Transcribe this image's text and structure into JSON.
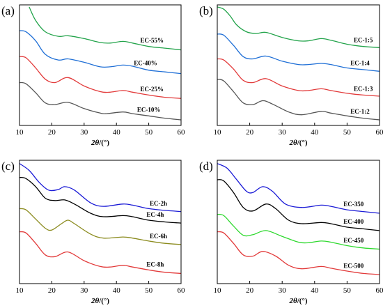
{
  "chart_data": [
    {
      "type": "line",
      "panel_label": "(a)",
      "xlabel_var": "2θ",
      "xlabel_unit": "/(°)",
      "xlim": [
        10,
        60
      ],
      "xticks": [
        "10",
        "20",
        "30",
        "40",
        "50",
        "60"
      ],
      "y_axis_labels": "none",
      "series": [
        {
          "name": "EC-55%",
          "color": "#22a34a",
          "points": [
            [
              13,
              1.0
            ],
            [
              15,
              0.88
            ],
            [
              18,
              0.78
            ],
            [
              22,
              0.74
            ],
            [
              25,
              0.745
            ],
            [
              30,
              0.72
            ],
            [
              35,
              0.685
            ],
            [
              38,
              0.68
            ],
            [
              42,
              0.695
            ],
            [
              45,
              0.68
            ],
            [
              50,
              0.65
            ],
            [
              55,
              0.635
            ],
            [
              60,
              0.62
            ]
          ]
        },
        {
          "name": "EC-40%",
          "color": "#1f6fd6",
          "points": [
            [
              10,
              0.79
            ],
            [
              12,
              0.78
            ],
            [
              15,
              0.7
            ],
            [
              18,
              0.58
            ],
            [
              22,
              0.53
            ],
            [
              25,
              0.54
            ],
            [
              30,
              0.51
            ],
            [
              35,
              0.47
            ],
            [
              38,
              0.47
            ],
            [
              42,
              0.485
            ],
            [
              45,
              0.475
            ],
            [
              50,
              0.44
            ],
            [
              55,
              0.425
            ],
            [
              60,
              0.41
            ]
          ]
        },
        {
          "name": "EC-25%",
          "color": "#e23a3a",
          "points": [
            [
              10,
              0.56
            ],
            [
              12,
              0.55
            ],
            [
              15,
              0.46
            ],
            [
              18,
              0.36
            ],
            [
              21,
              0.33
            ],
            [
              25,
              0.375
            ],
            [
              30,
              0.3
            ],
            [
              35,
              0.25
            ],
            [
              38,
              0.245
            ],
            [
              42,
              0.26
            ],
            [
              45,
              0.245
            ],
            [
              50,
              0.22
            ],
            [
              55,
              0.2
            ],
            [
              60,
              0.19
            ]
          ]
        },
        {
          "name": "EC-10%",
          "color": "#555555",
          "points": [
            [
              10,
              0.33
            ],
            [
              12,
              0.32
            ],
            [
              15,
              0.24
            ],
            [
              18,
              0.15
            ],
            [
              21,
              0.135
            ],
            [
              25,
              0.155
            ],
            [
              30,
              0.1
            ],
            [
              35,
              0.06
            ],
            [
              37,
              0.055
            ],
            [
              42,
              0.07
            ],
            [
              45,
              0.055
            ],
            [
              50,
              0.035
            ],
            [
              55,
              0.015
            ],
            [
              60,
              0.0
            ]
          ]
        }
      ]
    },
    {
      "type": "line",
      "panel_label": "(b)",
      "xlabel_var": "2θ",
      "xlabel_unit": "/(°)",
      "xlim": [
        10,
        60
      ],
      "xticks": [
        "10",
        "20",
        "30",
        "40",
        "50",
        "60"
      ],
      "y_axis_labels": "none",
      "series": [
        {
          "name": "EC-1:5",
          "color": "#22a34a",
          "points": [
            [
              10,
              1.0
            ],
            [
              12,
              0.98
            ],
            [
              14,
              0.92
            ],
            [
              16,
              0.84
            ],
            [
              19,
              0.78
            ],
            [
              22,
              0.765
            ],
            [
              25,
              0.775
            ],
            [
              30,
              0.73
            ],
            [
              35,
              0.7
            ],
            [
              38,
              0.7
            ],
            [
              42,
              0.72
            ],
            [
              45,
              0.705
            ],
            [
              50,
              0.67
            ],
            [
              55,
              0.65
            ],
            [
              60,
              0.64
            ]
          ]
        },
        {
          "name": "EC-1:4",
          "color": "#1f6fd6",
          "points": [
            [
              10,
              0.76
            ],
            [
              12,
              0.75
            ],
            [
              15,
              0.66
            ],
            [
              18,
              0.56
            ],
            [
              21,
              0.54
            ],
            [
              25,
              0.565
            ],
            [
              30,
              0.52
            ],
            [
              35,
              0.49
            ],
            [
              38,
              0.49
            ],
            [
              42,
              0.5
            ],
            [
              45,
              0.49
            ],
            [
              50,
              0.46
            ],
            [
              55,
              0.445
            ],
            [
              60,
              0.43
            ]
          ]
        },
        {
          "name": "EC-1:3",
          "color": "#e23a3a",
          "points": [
            [
              10,
              0.54
            ],
            [
              12,
              0.53
            ],
            [
              15,
              0.45
            ],
            [
              18,
              0.35
            ],
            [
              21,
              0.33
            ],
            [
              25,
              0.365
            ],
            [
              30,
              0.3
            ],
            [
              35,
              0.26
            ],
            [
              38,
              0.26
            ],
            [
              42,
              0.275
            ],
            [
              45,
              0.26
            ],
            [
              50,
              0.235
            ],
            [
              55,
              0.22
            ],
            [
              60,
              0.21
            ]
          ]
        },
        {
          "name": "EC-1:2",
          "color": "#555555",
          "points": [
            [
              10,
              0.36
            ],
            [
              12,
              0.345
            ],
            [
              15,
              0.25
            ],
            [
              18,
              0.15
            ],
            [
              21,
              0.135
            ],
            [
              24,
              0.17
            ],
            [
              27,
              0.14
            ],
            [
              32,
              0.07
            ],
            [
              36,
              0.045
            ],
            [
              42,
              0.075
            ],
            [
              45,
              0.06
            ],
            [
              50,
              0.035
            ],
            [
              55,
              0.015
            ],
            [
              60,
              0.0
            ]
          ]
        }
      ]
    },
    {
      "type": "line",
      "panel_label": "(c)",
      "xlabel_var": "2θ",
      "xlabel_unit": "/(°)",
      "xlim": [
        10,
        60
      ],
      "xticks": [
        "10",
        "20",
        "30",
        "40",
        "50",
        "60"
      ],
      "y_axis_labels": "none",
      "series": [
        {
          "name": "EC-2h",
          "color": "#1a1ad6",
          "points": [
            [
              10,
              0.99
            ],
            [
              13,
              0.93
            ],
            [
              16,
              0.83
            ],
            [
              19,
              0.76
            ],
            [
              22,
              0.765
            ],
            [
              24,
              0.79
            ],
            [
              27,
              0.76
            ],
            [
              32,
              0.65
            ],
            [
              36,
              0.62
            ],
            [
              42,
              0.64
            ],
            [
              45,
              0.63
            ],
            [
              50,
              0.6
            ],
            [
              55,
              0.585
            ],
            [
              60,
              0.575
            ]
          ]
        },
        {
          "name": "EC-4h",
          "color": "#000000",
          "points": [
            [
              10,
              0.87
            ],
            [
              12,
              0.86
            ],
            [
              15,
              0.79
            ],
            [
              18,
              0.69
            ],
            [
              21,
              0.67
            ],
            [
              24,
              0.675
            ],
            [
              27,
              0.64
            ],
            [
              32,
              0.56
            ],
            [
              36,
              0.53
            ],
            [
              42,
              0.54
            ],
            [
              45,
              0.53
            ],
            [
              50,
              0.5
            ],
            [
              55,
              0.485
            ],
            [
              60,
              0.475
            ]
          ]
        },
        {
          "name": "EC-6h",
          "color": "#8b8b1e",
          "points": [
            [
              10,
              0.6
            ],
            [
              12,
              0.59
            ],
            [
              15,
              0.51
            ],
            [
              18,
              0.43
            ],
            [
              20,
              0.415
            ],
            [
              23,
              0.47
            ],
            [
              25,
              0.5
            ],
            [
              27,
              0.47
            ],
            [
              32,
              0.38
            ],
            [
              36,
              0.345
            ],
            [
              42,
              0.355
            ],
            [
              45,
              0.345
            ],
            [
              50,
              0.32
            ],
            [
              55,
              0.3
            ],
            [
              60,
              0.29
            ]
          ]
        },
        {
          "name": "EC-8h",
          "color": "#e23a3a",
          "points": [
            [
              10,
              0.4
            ],
            [
              12,
              0.39
            ],
            [
              15,
              0.3
            ],
            [
              18,
              0.2
            ],
            [
              21,
              0.185
            ],
            [
              25,
              0.225
            ],
            [
              30,
              0.15
            ],
            [
              35,
              0.1
            ],
            [
              38,
              0.095
            ],
            [
              42,
              0.11
            ],
            [
              45,
              0.095
            ],
            [
              50,
              0.07
            ],
            [
              55,
              0.05
            ],
            [
              60,
              0.04
            ]
          ]
        }
      ]
    },
    {
      "type": "line",
      "panel_label": "(d)",
      "xlabel_var": "2θ",
      "xlabel_unit": "/(°)",
      "xlim": [
        10,
        60
      ],
      "xticks": [
        "10",
        "20",
        "30",
        "40",
        "50",
        "60"
      ],
      "y_axis_labels": "none",
      "series": [
        {
          "name": "EC-350",
          "color": "#1a1ad6",
          "points": [
            [
              10,
              0.99
            ],
            [
              13,
              0.95
            ],
            [
              16,
              0.85
            ],
            [
              19,
              0.75
            ],
            [
              21,
              0.74
            ],
            [
              24,
              0.79
            ],
            [
              27,
              0.75
            ],
            [
              31,
              0.64
            ],
            [
              36,
              0.61
            ],
            [
              42,
              0.63
            ],
            [
              45,
              0.62
            ],
            [
              50,
              0.59
            ],
            [
              55,
              0.575
            ],
            [
              60,
              0.56
            ]
          ]
        },
        {
          "name": "EC-400",
          "color": "#000000",
          "points": [
            [
              10,
              0.85
            ],
            [
              12,
              0.84
            ],
            [
              15,
              0.74
            ],
            [
              18,
              0.61
            ],
            [
              21,
              0.58
            ],
            [
              25,
              0.64
            ],
            [
              28,
              0.6
            ],
            [
              32,
              0.5
            ],
            [
              36,
              0.47
            ],
            [
              42,
              0.48
            ],
            [
              45,
              0.47
            ],
            [
              50,
              0.44
            ],
            [
              55,
              0.425
            ],
            [
              60,
              0.41
            ]
          ]
        },
        {
          "name": "EC-450",
          "color": "#2fd92f",
          "points": [
            [
              10,
              0.55
            ],
            [
              12,
              0.54
            ],
            [
              15,
              0.45
            ],
            [
              18,
              0.37
            ],
            [
              21,
              0.375
            ],
            [
              25,
              0.41
            ],
            [
              30,
              0.36
            ],
            [
              35,
              0.31
            ],
            [
              38,
              0.305
            ],
            [
              42,
              0.32
            ],
            [
              45,
              0.31
            ],
            [
              50,
              0.28
            ],
            [
              55,
              0.26
            ],
            [
              60,
              0.25
            ]
          ]
        },
        {
          "name": "EC-500",
          "color": "#e23a3a",
          "points": [
            [
              10,
              0.4
            ],
            [
              12,
              0.39
            ],
            [
              15,
              0.3
            ],
            [
              18,
              0.2
            ],
            [
              21,
              0.19
            ],
            [
              24,
              0.23
            ],
            [
              28,
              0.19
            ],
            [
              32,
              0.11
            ],
            [
              36,
              0.08
            ],
            [
              42,
              0.1
            ],
            [
              45,
              0.085
            ],
            [
              50,
              0.06
            ],
            [
              55,
              0.04
            ],
            [
              60,
              0.03
            ]
          ]
        }
      ]
    }
  ]
}
